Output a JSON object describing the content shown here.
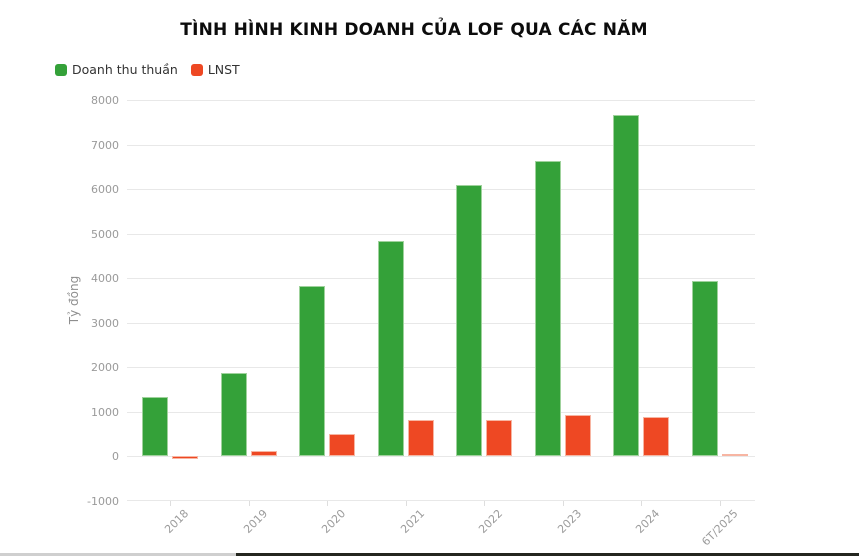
{
  "title": "TÌNH HÌNH KINH DOANH CỦA LOF QUA CÁC NĂM",
  "legend": {
    "items": [
      {
        "label": "Doanh thu thuần",
        "color": "#34a139"
      },
      {
        "label": "LNST",
        "color": "#ee4823"
      }
    ]
  },
  "chart_data": {
    "type": "bar",
    "title": "TÌNH HÌNH KINH DOANH CỦA LOF QUA CÁC NĂM",
    "categories": [
      "2018",
      "2019",
      "2020",
      "2021",
      "2022",
      "2023",
      "2024",
      "6T/2025"
    ],
    "series": [
      {
        "name": "Doanh thu thuần",
        "color": "#34a139",
        "border_color": "#9fd29c",
        "values": [
          1335,
          1863,
          3836,
          4827,
          6086,
          6632,
          7657,
          3931
        ]
      },
      {
        "name": "LNST",
        "color": "#ee4823",
        "border_color": "#f7b5a2",
        "values": [
          -54,
          113,
          502,
          823,
          810,
          924,
          888,
          66
        ]
      }
    ],
    "xlabel": "",
    "ylabel": "Tỷ đồng",
    "ylim": [
      -1000,
      8000
    ],
    "ytick_step": 1000,
    "yticks": [
      "8000",
      "7000",
      "6000",
      "5000",
      "4000",
      "3000",
      "2000",
      "1000",
      "0",
      "-1000"
    ],
    "grid": true,
    "legend_position": "top-left",
    "bar_orientation": "vertical"
  },
  "colors": {
    "background": "#ffffff",
    "gridline": "#e8e8e8",
    "axis_label": "#9a9a9a",
    "title": "#0c0c0c",
    "legend_text": "#333333",
    "bottom_strip_left": "#cfcfcf",
    "bottom_strip_right": "#24261f"
  }
}
